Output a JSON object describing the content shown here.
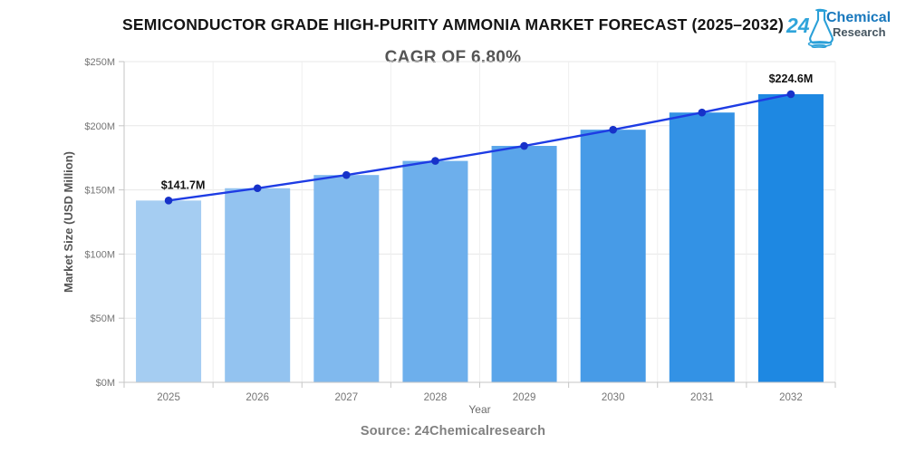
{
  "header": {
    "title": "SEMICONDUCTOR GRADE HIGH-PURITY AMMONIA MARKET FORECAST (2025–2032)",
    "subtitle": "CAGR OF 6.80%"
  },
  "logo": {
    "number": "24",
    "line1": "Chemical",
    "line2": "Research",
    "colors": {
      "number": "#2fa4da",
      "line1": "#1878bd",
      "line2": "#455560",
      "flask": "#2196d3"
    }
  },
  "footer": {
    "source": "Source: 24Chemicalresearch"
  },
  "chart_data": {
    "type": "bar",
    "title": "SEMICONDUCTOR GRADE HIGH-PURITY AMMONIA MARKET FORECAST (2025–2032)",
    "subtitle": "CAGR OF 6.80%",
    "categories": [
      "2025",
      "2026",
      "2027",
      "2028",
      "2029",
      "2030",
      "2031",
      "2032"
    ],
    "values": [
      141.7,
      151.3,
      161.6,
      172.6,
      184.3,
      196.9,
      210.3,
      224.6
    ],
    "units": "USD Million",
    "xlabel": "Year",
    "ylabel": "Market Size (USD Million)",
    "ylim": [
      0,
      250
    ],
    "yticks": [
      0,
      50,
      100,
      150,
      200,
      250
    ],
    "ytick_labels": [
      "$0M",
      "$50M",
      "$100M",
      "$150M",
      "$200M",
      "$250M"
    ],
    "grid": true,
    "legend": "none",
    "line_overlay": true,
    "bar_colors": [
      "#a5cdf2",
      "#93c3f0",
      "#80b9ee",
      "#6dafec",
      "#5aa5ea",
      "#479be7",
      "#3392e5",
      "#1e88e2"
    ],
    "line_color": "#1e3ce4",
    "marker_color": "#1732c9",
    "annotations": [
      {
        "index": 0,
        "text": "$141.7M",
        "dx": 16
      },
      {
        "index": 7,
        "text": "$224.6M",
        "dx": 0
      }
    ]
  }
}
